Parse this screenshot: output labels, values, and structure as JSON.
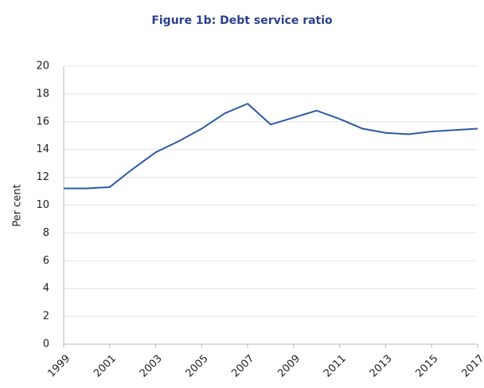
{
  "chart_data": {
    "type": "line",
    "title": "Figure 1b: Debt service ratio",
    "y_label": "Per cent",
    "x": [
      1999,
      2000,
      2001,
      2002,
      2003,
      2004,
      2005,
      2006,
      2007,
      2008,
      2009,
      2010,
      2011,
      2012,
      2013,
      2014,
      2015,
      2016,
      2017
    ],
    "series": [
      {
        "name": "Debt service ratio",
        "color": "#2c5aa6",
        "values": [
          11.2,
          11.2,
          11.3,
          12.6,
          13.8,
          14.6,
          15.5,
          16.6,
          17.3,
          15.8,
          16.3,
          16.8,
          16.2,
          15.5,
          15.2,
          15.1,
          15.3,
          15.4,
          15.5
        ]
      }
    ],
    "xlim": [
      1999,
      2017
    ],
    "xticks": [
      1999,
      2001,
      2003,
      2005,
      2007,
      2009,
      2011,
      2013,
      2015,
      2017
    ],
    "ylim": [
      0,
      20
    ],
    "yticks": [
      0,
      2,
      4,
      6,
      8,
      10,
      12,
      14,
      16,
      18,
      20
    ],
    "grid": true
  }
}
